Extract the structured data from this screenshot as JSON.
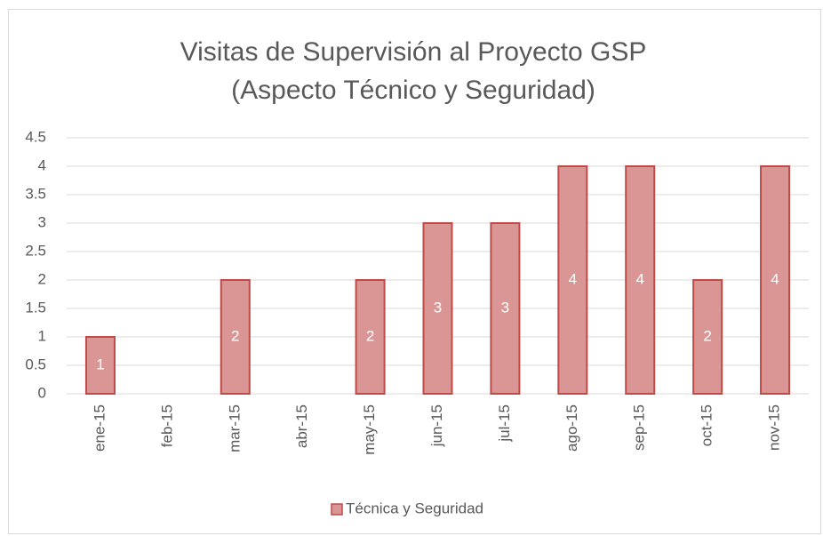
{
  "chart_data": {
    "type": "bar",
    "title": [
      "Visitas de Supervisión al Proyecto GSP",
      "(Aspecto Técnico y Seguridad)"
    ],
    "categories": [
      "ene-15",
      "feb-15",
      "mar-15",
      "abr-15",
      "may-15",
      "jun-15",
      "jul-15",
      "ago-15",
      "sep-15",
      "oct-15",
      "nov-15"
    ],
    "series": [
      {
        "name": "Técnica y Seguridad",
        "color": "#d99694",
        "edgecolor": "#be4b48",
        "values": [
          1,
          null,
          2,
          null,
          2,
          3,
          3,
          4,
          4,
          2,
          4
        ]
      }
    ],
    "ylim": [
      0,
      4.5
    ],
    "yticks": [
      0,
      0.5,
      1,
      1.5,
      2,
      2.5,
      3,
      3.5,
      4,
      4.5
    ],
    "grid": true,
    "legend": "bottom"
  }
}
